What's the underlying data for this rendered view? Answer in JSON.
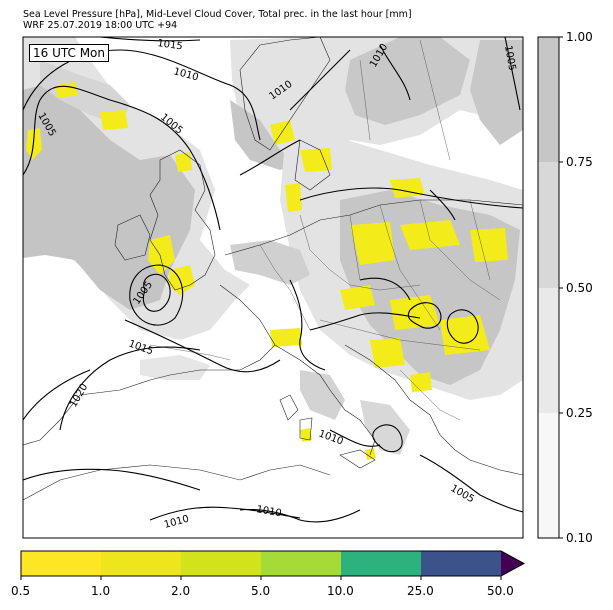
{
  "title": {
    "line1": "Sea Level Pressure [hPa], Mid-Level Cloud Cover, Total prec. in the last hour [mm]",
    "line2": "WRF 25.07.2019 18:00 UTC +94"
  },
  "time_label": "16 UTC Mon",
  "isobars": [
    {
      "label": "1015"
    },
    {
      "label": "1010"
    },
    {
      "label": "1005"
    },
    {
      "label": "1005"
    },
    {
      "label": "1005"
    },
    {
      "label": "1015"
    },
    {
      "label": "1020"
    },
    {
      "label": "1010"
    },
    {
      "label": "1010"
    },
    {
      "label": "1010"
    },
    {
      "label": "1005"
    },
    {
      "label": "1005"
    },
    {
      "label": "1010"
    },
    {
      "label": "1010"
    }
  ],
  "cloud_colorbar": {
    "ticks": [
      "0.10",
      "0.25",
      "0.50",
      "0.75",
      "1.00"
    ],
    "colors": [
      "#f7f7f7",
      "#e9e9e9",
      "#d8d8d8",
      "#c6c6c6"
    ]
  },
  "precip_colorbar": {
    "ticks": [
      "0.5",
      "1.0",
      "2.0",
      "5.0",
      "10.0",
      "25.0",
      "50.0"
    ],
    "colors": [
      "#fde725",
      "#eee51c",
      "#d2e21b",
      "#a5db36",
      "#2db27d",
      "#3b528b",
      "#440154"
    ]
  },
  "colors": {
    "land": "#ffffff",
    "cloud_light": "#e3e3e3",
    "cloud_dark": "#c4c4c4",
    "precip": "#f3ec1a"
  }
}
